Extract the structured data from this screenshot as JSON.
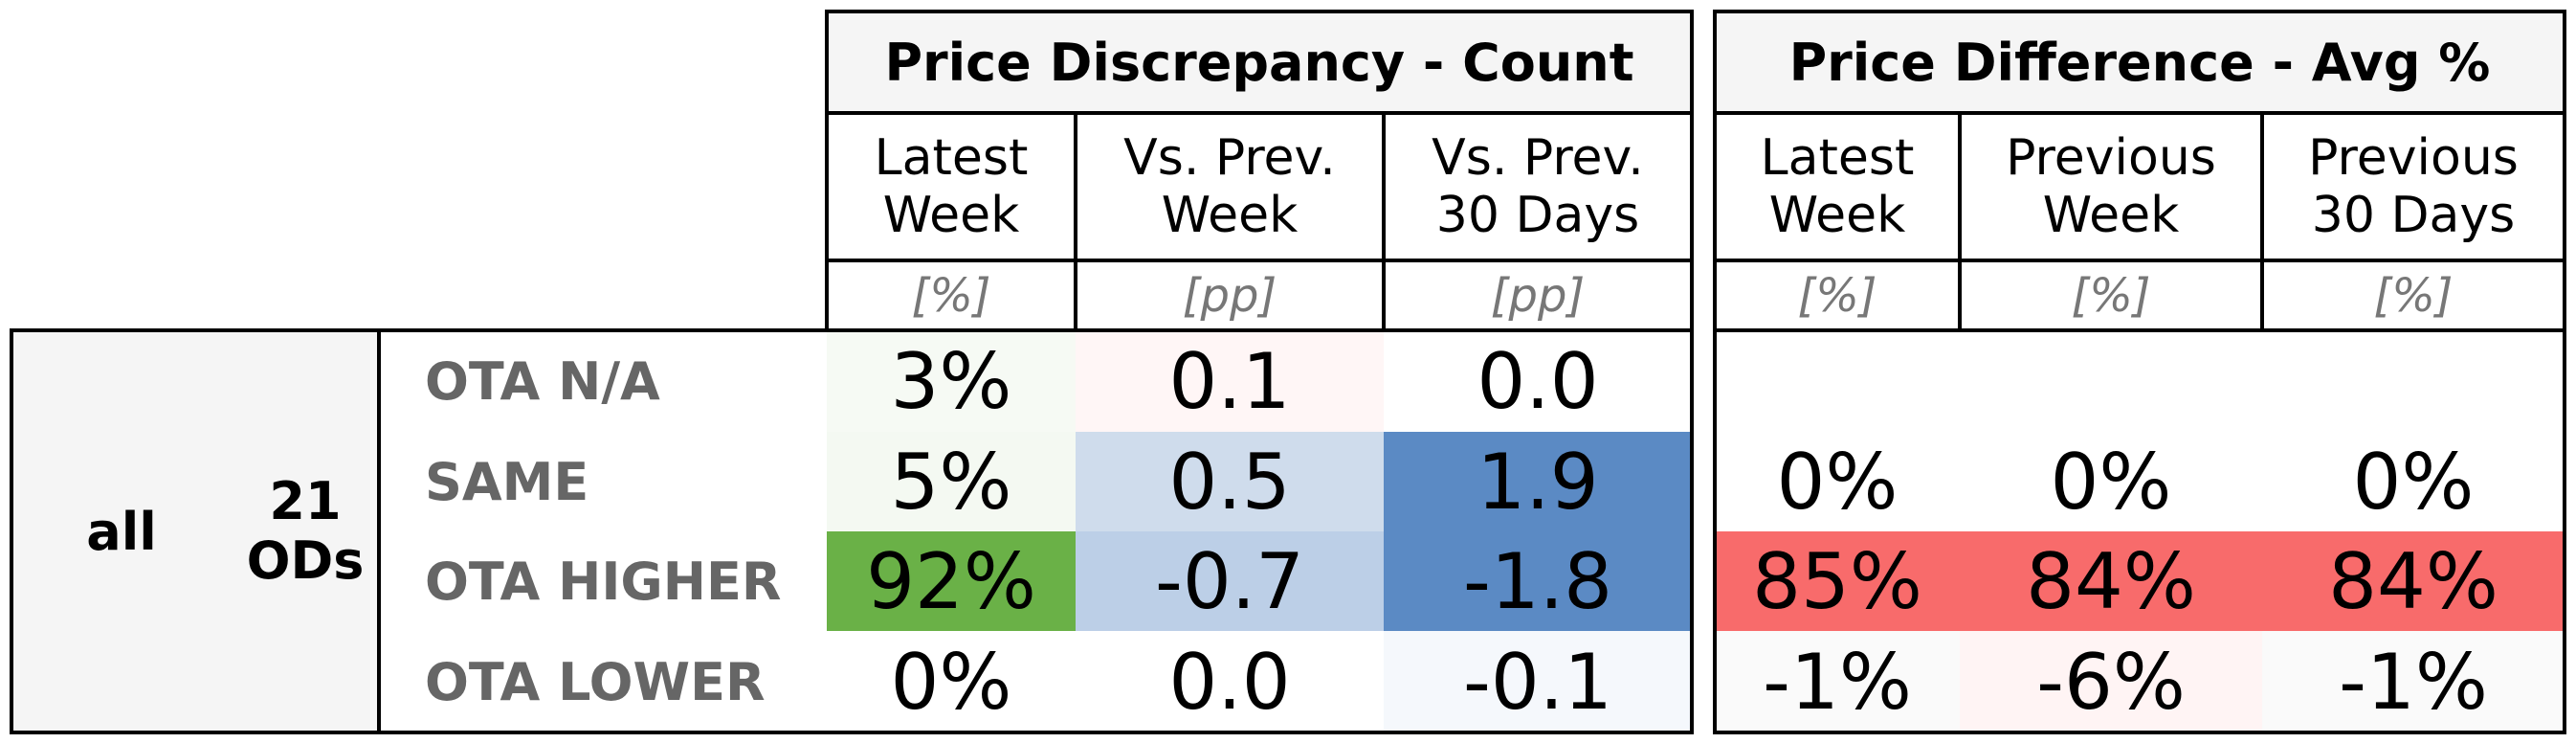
{
  "chart_data": {
    "type": "table",
    "row_group": {
      "level1": "all",
      "level2": "21 ODs"
    },
    "row_labels": [
      "OTA N/A",
      "SAME",
      "OTA HIGHER",
      "OTA LOWER"
    ],
    "groups": [
      {
        "title": "Price Discrepancy - Count",
        "columns": [
          {
            "label": "Latest Week",
            "unit": "[%]"
          },
          {
            "label": "Vs. Prev. Week",
            "unit": "[pp]"
          },
          {
            "label": "Vs. Prev. 30 Days",
            "unit": "[pp]"
          }
        ],
        "rows": [
          [
            "3%",
            "0.1",
            "0.0"
          ],
          [
            "5%",
            "0.5",
            "1.9"
          ],
          [
            "92%",
            "-0.7",
            "-1.8"
          ],
          [
            "0%",
            "0.0",
            "-0.1"
          ]
        ],
        "colors": [
          [
            "#f6faf4",
            "#fff6f6",
            "#ffffff"
          ],
          [
            "#f4f9f2",
            "#cfdcec",
            "#5b8ac4"
          ],
          [
            "#6ab147",
            "#bccfe7",
            "#5b8ac4"
          ],
          [
            "#ffffff",
            "#ffffff",
            "#f5f8fc"
          ]
        ]
      },
      {
        "title": "Price Difference - Avg %",
        "columns": [
          {
            "label": "Latest Week",
            "unit": "[%]"
          },
          {
            "label": "Previous Week",
            "unit": "[%]"
          },
          {
            "label": "Previous 30 Days",
            "unit": "[%]"
          }
        ],
        "rows": [
          [
            "",
            "",
            ""
          ],
          [
            "0%",
            "0%",
            "0%"
          ],
          [
            "85%",
            "84%",
            "84%"
          ],
          [
            "-1%",
            "-6%",
            "-1%"
          ]
        ],
        "colors": [
          [
            "#ffffff",
            "#ffffff",
            "#ffffff"
          ],
          [
            "#ffffff",
            "#ffffff",
            "#ffffff"
          ],
          [
            "#f86b6b",
            "#f86b6b",
            "#f86b6b"
          ],
          [
            "#fafafa",
            "#fff4f4",
            "#fafafa"
          ]
        ]
      }
    ]
  }
}
